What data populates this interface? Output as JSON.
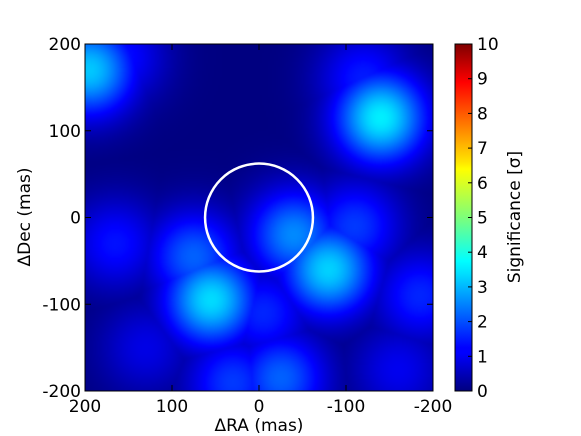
{
  "chart_data": {
    "type": "heatmap",
    "title": "",
    "xlabel": "ΔRA (mas)",
    "ylabel": "ΔDec (mas)",
    "colorbar_label": "Significance [σ]",
    "x_range": [
      200,
      -200
    ],
    "y_range": [
      -200,
      200
    ],
    "x_ticks": [
      "200",
      "100",
      "0",
      "-100",
      "-200"
    ],
    "y_ticks": [
      "200",
      "100",
      "0",
      "-100",
      "-200"
    ],
    "colorbar_range": [
      0,
      10
    ],
    "colorbar_ticks": [
      "10",
      "9",
      "8",
      "7",
      "6",
      "5",
      "4",
      "3",
      "2",
      "1",
      "0"
    ],
    "colormap": "jet",
    "background_color": "#00008f",
    "masked_circle": {
      "center_ra": 0,
      "center_dec": 0,
      "radius": 62,
      "color": "#ffffff"
    },
    "peaks": [
      {
        "ra": 195,
        "dec": 170,
        "significance": 3.2
      },
      {
        "ra": 160,
        "dec": 185,
        "significance": 1.4
      },
      {
        "ra": -140,
        "dec": 115,
        "significance": 3.6
      },
      {
        "ra": -120,
        "dec": 160,
        "significance": 1.5
      },
      {
        "ra": 165,
        "dec": -30,
        "significance": 1.4
      },
      {
        "ra": 55,
        "dec": -95,
        "significance": 3.4
      },
      {
        "ra": 75,
        "dec": -45,
        "significance": 2.2
      },
      {
        "ra": -80,
        "dec": -60,
        "significance": 3.3
      },
      {
        "ra": -40,
        "dec": -20,
        "significance": 2.6
      },
      {
        "ra": -110,
        "dec": -10,
        "significance": 1.8
      },
      {
        "ra": -5,
        "dec": -110,
        "significance": 1.6
      },
      {
        "ra": -25,
        "dec": -185,
        "significance": 2.2
      },
      {
        "ra": 30,
        "dec": -190,
        "significance": 1.8
      },
      {
        "ra": 130,
        "dec": -150,
        "significance": 1.0
      },
      {
        "ra": -185,
        "dec": -90,
        "significance": 1.6
      },
      {
        "ra": -160,
        "dec": -175,
        "significance": 1.1
      }
    ]
  }
}
